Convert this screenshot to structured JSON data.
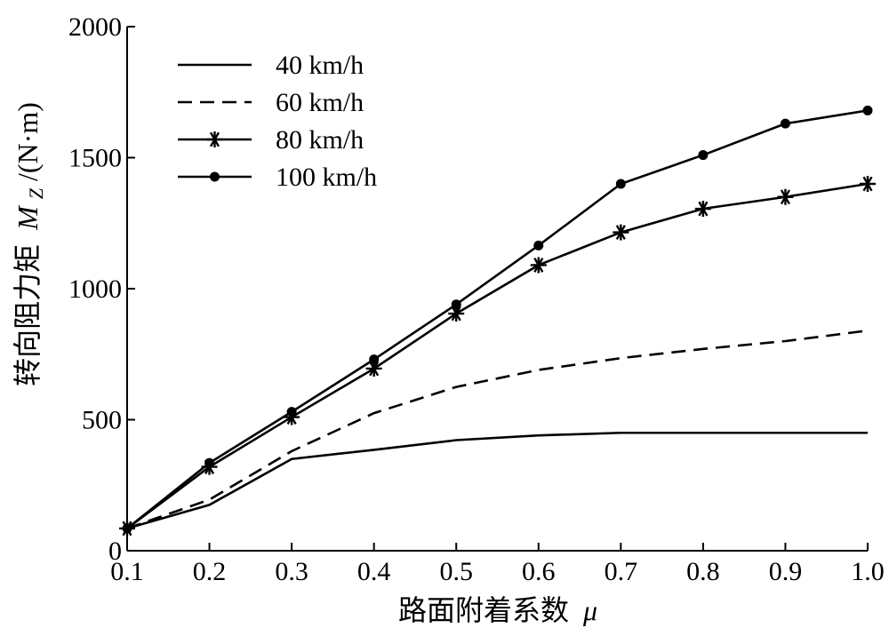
{
  "chart_data": {
    "type": "line",
    "xlabel_text": "路面附着系数",
    "xlabel_symbol": "μ",
    "ylabel_text": "转向阻力矩",
    "ylabel_symbol_main": "M",
    "ylabel_symbol_sub": "Z",
    "ylabel_unit": "/(N·m)",
    "xlim": [
      0.1,
      1.0
    ],
    "ylim": [
      0,
      2000
    ],
    "x_ticks": [
      "0.1",
      "0.2",
      "0.3",
      "0.4",
      "0.5",
      "0.6",
      "0.7",
      "0.8",
      "0.9",
      "1.0"
    ],
    "y_ticks": [
      "0",
      "500",
      "1000",
      "1500",
      "2000"
    ],
    "legend_position": "top-left",
    "x": [
      0.1,
      0.2,
      0.3,
      0.4,
      0.5,
      0.6,
      0.7,
      0.8,
      0.9,
      1.0
    ],
    "series": [
      {
        "name": "40 km/h",
        "style": "solid",
        "marker": "none",
        "values": [
          85,
          175,
          350,
          385,
          422,
          440,
          450,
          450,
          450,
          450
        ]
      },
      {
        "name": "60 km/h",
        "style": "dashed",
        "marker": "none",
        "values": [
          85,
          195,
          380,
          525,
          625,
          690,
          735,
          770,
          800,
          840
        ]
      },
      {
        "name": "80 km/h",
        "style": "solid",
        "marker": "star",
        "values": [
          85,
          320,
          510,
          695,
          905,
          1090,
          1215,
          1305,
          1350,
          1400
        ]
      },
      {
        "name": "100 km/h",
        "style": "solid",
        "marker": "circle",
        "values": [
          85,
          335,
          530,
          730,
          940,
          1165,
          1400,
          1510,
          1630,
          1680
        ]
      }
    ]
  }
}
